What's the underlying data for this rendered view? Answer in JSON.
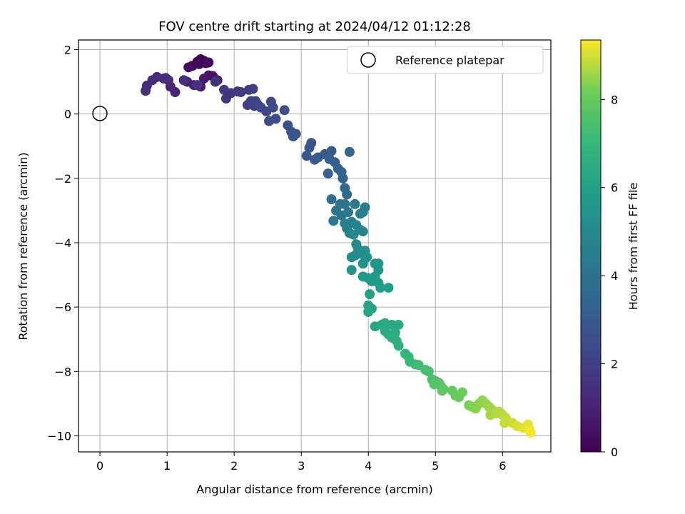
{
  "chart_data": {
    "type": "scatter",
    "title": "FOV centre drift starting at 2024/04/12 01:12:28",
    "xlabel": "Angular distance from reference (arcmin)",
    "ylabel": "Rotation from reference (arcmin)",
    "xlim": [
      -0.32,
      6.72
    ],
    "ylim": [
      -10.5,
      2.3
    ],
    "xticks": [
      0,
      1,
      2,
      3,
      4,
      5,
      6
    ],
    "yticks": [
      2,
      0,
      -2,
      -4,
      -6,
      -8,
      -10
    ],
    "grid": true,
    "colormap": "viridis",
    "colorbar": {
      "label": "Hours from first FF file",
      "range": [
        0,
        9.35
      ],
      "ticks": [
        0,
        2,
        4,
        6,
        8
      ]
    },
    "legend": {
      "position": "top-right",
      "entries": [
        "Reference platepar"
      ]
    },
    "reference_point": {
      "x": 0,
      "y": 0
    },
    "series": [
      {
        "points": [
          [
            1.5,
            1.7,
            0.0
          ],
          [
            1.45,
            1.62,
            0.05
          ],
          [
            1.55,
            1.65,
            0.1
          ],
          [
            1.38,
            1.5,
            0.15
          ],
          [
            1.58,
            1.58,
            0.2
          ],
          [
            1.48,
            1.55,
            0.25
          ],
          [
            1.32,
            1.45,
            0.35
          ],
          [
            1.62,
            1.6,
            0.4
          ],
          [
            1.62,
            1.2,
            0.5
          ],
          [
            1.68,
            1.18,
            0.6
          ],
          [
            1.55,
            1.1,
            0.7
          ],
          [
            1.75,
            1.05,
            0.8
          ],
          [
            1.5,
            0.85,
            0.9
          ],
          [
            1.4,
            0.9,
            0.95
          ],
          [
            1.3,
            1.0,
            1.0
          ],
          [
            1.12,
            0.68,
            1.05
          ],
          [
            1.05,
            0.85,
            1.1
          ],
          [
            1.02,
            1.05,
            1.15
          ],
          [
            0.95,
            1.1,
            1.2
          ],
          [
            0.85,
            1.15,
            1.25
          ],
          [
            0.78,
            1.05,
            1.3
          ],
          [
            0.7,
            0.88,
            1.35
          ],
          [
            0.68,
            0.72,
            1.4
          ],
          [
            0.98,
            1.12,
            1.45
          ],
          [
            1.25,
            1.05,
            1.5
          ],
          [
            1.45,
            0.9,
            1.55
          ],
          [
            1.72,
            1.0,
            1.6
          ],
          [
            1.85,
            0.75,
            1.65
          ],
          [
            1.88,
            0.48,
            1.7
          ],
          [
            1.95,
            0.65,
            1.75
          ],
          [
            2.05,
            0.7,
            1.8
          ],
          [
            2.1,
            0.68,
            1.85
          ],
          [
            2.22,
            0.75,
            1.9
          ],
          [
            2.28,
            0.78,
            1.95
          ],
          [
            2.2,
            0.28,
            2.0
          ],
          [
            2.25,
            0.4,
            2.05
          ],
          [
            2.3,
            0.25,
            2.1
          ],
          [
            2.32,
            0.4,
            2.15
          ],
          [
            2.35,
            0.3,
            2.2
          ],
          [
            2.4,
            0.2,
            2.25
          ],
          [
            2.48,
            0.08,
            2.3
          ],
          [
            2.55,
            0.38,
            2.35
          ],
          [
            2.58,
            0.2,
            2.4
          ],
          [
            2.52,
            -0.22,
            2.45
          ],
          [
            2.62,
            -0.15,
            2.5
          ],
          [
            2.75,
            0.12,
            2.55
          ],
          [
            2.8,
            -0.35,
            2.6
          ],
          [
            2.85,
            -0.55,
            2.65
          ],
          [
            2.88,
            -0.7,
            2.7
          ],
          [
            2.92,
            -0.62,
            2.75
          ],
          [
            3.15,
            -0.9,
            2.8
          ],
          [
            3.12,
            -1.05,
            2.85
          ],
          [
            3.08,
            -1.3,
            2.9
          ],
          [
            3.2,
            -1.42,
            2.95
          ],
          [
            3.25,
            -1.35,
            3.0
          ],
          [
            3.35,
            -1.25,
            3.05
          ],
          [
            3.45,
            -1.15,
            3.1
          ],
          [
            3.42,
            -1.4,
            3.15
          ],
          [
            3.5,
            -1.5,
            3.2
          ],
          [
            3.4,
            -1.85,
            3.25
          ],
          [
            3.55,
            -1.7,
            3.3
          ],
          [
            3.6,
            -1.8,
            3.35
          ],
          [
            3.62,
            -2.0,
            3.4
          ],
          [
            3.72,
            -1.18,
            3.45
          ],
          [
            3.65,
            -2.3,
            3.55
          ],
          [
            3.68,
            -2.5,
            3.65
          ],
          [
            3.45,
            -2.65,
            3.9
          ],
          [
            3.52,
            -3.0,
            4.0
          ],
          [
            3.58,
            -2.8,
            4.05
          ],
          [
            3.65,
            -2.8,
            4.1
          ],
          [
            3.6,
            -3.15,
            4.15
          ],
          [
            3.48,
            -3.32,
            4.2
          ],
          [
            3.7,
            -3.05,
            4.25
          ],
          [
            3.8,
            -2.8,
            4.3
          ],
          [
            3.88,
            -3.1,
            4.35
          ],
          [
            3.95,
            -2.9,
            4.4
          ],
          [
            3.92,
            -3.05,
            4.45
          ],
          [
            3.65,
            -3.4,
            4.5
          ],
          [
            3.75,
            -3.35,
            4.55
          ],
          [
            3.68,
            -3.55,
            4.6
          ],
          [
            3.72,
            -3.7,
            4.65
          ],
          [
            3.82,
            -3.45,
            4.7
          ],
          [
            3.88,
            -3.6,
            4.75
          ],
          [
            3.92,
            -3.65,
            4.8
          ],
          [
            3.78,
            -3.75,
            4.85
          ],
          [
            3.82,
            -4.05,
            5.0
          ],
          [
            3.85,
            -4.2,
            5.05
          ],
          [
            3.8,
            -4.4,
            5.1
          ],
          [
            3.75,
            -4.45,
            5.15
          ],
          [
            3.9,
            -4.35,
            5.2
          ],
          [
            3.95,
            -4.25,
            5.25
          ],
          [
            3.98,
            -4.45,
            5.3
          ],
          [
            3.92,
            -4.65,
            5.35
          ],
          [
            3.75,
            -4.85,
            5.4
          ],
          [
            4.1,
            -4.65,
            5.45
          ],
          [
            4.15,
            -4.85,
            5.5
          ],
          [
            4.15,
            -4.65,
            5.55
          ],
          [
            3.92,
            -5.05,
            5.6
          ],
          [
            4.0,
            -5.1,
            5.65
          ],
          [
            4.05,
            -5.2,
            5.7
          ],
          [
            4.1,
            -5.05,
            5.75
          ],
          [
            4.15,
            -5.25,
            5.8
          ],
          [
            4.18,
            -5.4,
            5.9
          ],
          [
            4.3,
            -5.4,
            5.95
          ],
          [
            4.02,
            -5.6,
            6.0
          ],
          [
            4.0,
            -5.95,
            6.05
          ],
          [
            4.0,
            -6.15,
            6.1
          ],
          [
            4.05,
            -6.05,
            6.15
          ],
          [
            4.1,
            -6.6,
            6.2
          ],
          [
            4.2,
            -6.55,
            6.25
          ],
          [
            4.25,
            -6.5,
            6.3
          ],
          [
            4.35,
            -6.55,
            6.35
          ],
          [
            4.45,
            -6.55,
            6.4
          ],
          [
            4.25,
            -6.75,
            6.45
          ],
          [
            4.3,
            -6.85,
            6.5
          ],
          [
            4.4,
            -6.8,
            6.55
          ],
          [
            4.35,
            -6.95,
            6.6
          ],
          [
            4.42,
            -7.05,
            6.65
          ],
          [
            4.45,
            -7.2,
            6.7
          ],
          [
            4.55,
            -7.45,
            6.85
          ],
          [
            4.6,
            -7.55,
            6.95
          ],
          [
            4.62,
            -7.7,
            7.05
          ],
          [
            4.7,
            -7.78,
            7.15
          ],
          [
            4.75,
            -7.8,
            7.25
          ],
          [
            4.85,
            -7.95,
            7.35
          ],
          [
            4.9,
            -8.0,
            7.4
          ],
          [
            4.95,
            -8.25,
            7.5
          ],
          [
            5.0,
            -8.3,
            7.55
          ],
          [
            5.05,
            -8.35,
            7.6
          ],
          [
            4.98,
            -8.4,
            7.65
          ],
          [
            5.08,
            -8.45,
            7.7
          ],
          [
            5.12,
            -8.55,
            7.75
          ],
          [
            5.1,
            -8.6,
            7.8
          ],
          [
            5.25,
            -8.6,
            7.95
          ],
          [
            5.3,
            -8.75,
            8.0
          ],
          [
            5.35,
            -8.8,
            8.05
          ],
          [
            5.4,
            -8.65,
            8.1
          ],
          [
            5.5,
            -9.05,
            8.25
          ],
          [
            5.55,
            -9.1,
            8.3
          ],
          [
            5.6,
            -9.15,
            8.35
          ],
          [
            5.65,
            -9.0,
            8.4
          ],
          [
            5.7,
            -8.9,
            8.45
          ],
          [
            5.75,
            -9.0,
            8.5
          ],
          [
            5.8,
            -9.1,
            8.55
          ],
          [
            5.85,
            -9.2,
            8.6
          ],
          [
            5.82,
            -9.35,
            8.65
          ],
          [
            5.9,
            -9.3,
            8.7
          ],
          [
            5.95,
            -9.25,
            8.75
          ],
          [
            6.0,
            -9.35,
            8.8
          ],
          [
            6.05,
            -9.45,
            8.85
          ],
          [
            6.03,
            -9.6,
            8.9
          ],
          [
            6.15,
            -9.6,
            8.95
          ],
          [
            6.22,
            -9.7,
            9.05
          ],
          [
            6.3,
            -9.75,
            9.1
          ],
          [
            6.38,
            -9.65,
            9.15
          ],
          [
            6.4,
            -9.8,
            9.2
          ],
          [
            6.42,
            -9.9,
            9.3
          ]
        ]
      }
    ]
  }
}
